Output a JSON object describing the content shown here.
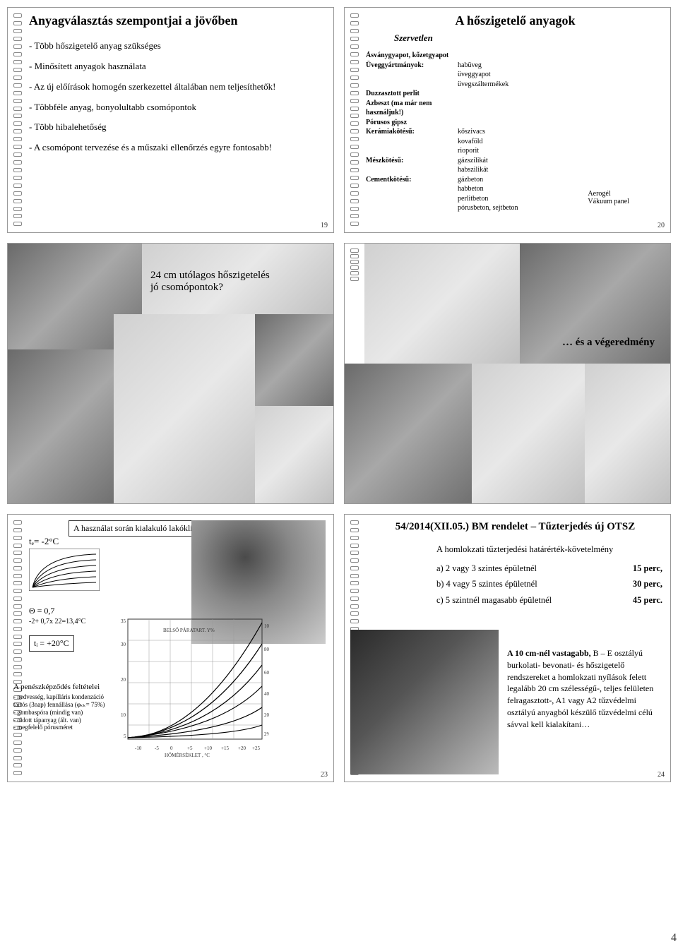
{
  "slide19": {
    "title": "Anyagválasztás szempontjai a jövőben",
    "bullets": [
      "- Több hőszigetelő anyag szükséges",
      "- Minősített anyagok használata",
      "- Az új előírások homogén szerkezettel általában nem teljesíthetők!",
      "- Többféle anyag, bonyolultabb csomópontok",
      "- Több hibalehetőség",
      "- A csomópont tervezése és a műszaki ellenőrzés egyre fontosabb!"
    ],
    "page": "19"
  },
  "slide20": {
    "title": "A hőszigetelő anyagok",
    "subhead": "Szervetlen",
    "rows": [
      {
        "label": "Ásványgyapot, kőzetgyapot",
        "val": ""
      },
      {
        "label": "Üveggyártmányok:",
        "val": "habüveg"
      },
      {
        "label": "",
        "val": "üveggyapot"
      },
      {
        "label": "",
        "val": "üvegszáltermékek"
      },
      {
        "label": "Duzzasztott perlit",
        "val": ""
      },
      {
        "label": "Azbeszt (ma már nem használjuk!)",
        "val": ""
      },
      {
        "label": "Pórusos gipsz",
        "val": ""
      },
      {
        "label": "Kerámiakötésű:",
        "val": "kőszivacs"
      },
      {
        "label": "",
        "val": "kovaföld"
      },
      {
        "label": "",
        "val": "rioporit"
      },
      {
        "label": "Mészkötésű:",
        "val": "gázszilikát"
      },
      {
        "label": "",
        "val": "habszilikát"
      },
      {
        "label": "Cementkötésű:",
        "val": "gázbeton"
      },
      {
        "label": "",
        "val": "habbeton"
      },
      {
        "label": "",
        "val": "perlitbeton"
      },
      {
        "label": "",
        "val": "pórusbeton, sejtbeton"
      }
    ],
    "footer": [
      "Aerogél",
      "Vákuum panel"
    ],
    "page": "20"
  },
  "slide21": {
    "caption1": "24 cm utólagos hőszigetelés",
    "caption2": "jó csomópontok?"
  },
  "slide22": {
    "caption": "… és a végeredmény"
  },
  "slide23": {
    "header": "A használat során kialakuló lakóklíma, egészségvédelem",
    "te_label": "tₑ= -2°C",
    "theta": "Θ = 0,7",
    "theta_calc": "-2+ 0,7x 22=13,4°C",
    "ti_label": "tᵢ = +20°C",
    "mold_title": "A penészképződés feltételei",
    "mold_items": [
      "- nedvesség, kapilláris kondenzáció tartós (3nap) fennállása (φₖₖ= 75%)",
      "- gombaspóra (mindig van)",
      "- oldott tápanyag (ált. van)",
      "- megfelelő pórusméret"
    ],
    "page": "23"
  },
  "slide24": {
    "title": "54/2014(XII.05.) BM rendelet – Tűzterjedés új OTSZ",
    "req_head": "A homlokzati tűzterjedési határérték-követelmény",
    "reqs": [
      {
        "t": "a) 2 vagy 3 szintes épületnél",
        "v": "15 perc,"
      },
      {
        "t": "b) 4 vagy 5 szintes épületnél",
        "v": "30 perc,"
      },
      {
        "t": "c) 5 szintnél magasabb épületnél",
        "v": "45 perc."
      }
    ],
    "para": "A 10 cm-nél vastagabb, B – E osztályú burkolati- bevonati- és hőszigetelő rendszereket a homlokzati nyílások felett legalább 20 cm szélességű-, teljes felületen felragasztott-, A1 vagy A2 tűzvédelmi osztályú anyagból készülő tűzvédelmi célú sávval kell kialakítani…",
    "para_bold": "A 10 cm-nél vastagabb,",
    "page": "24"
  },
  "bigpage": "4"
}
